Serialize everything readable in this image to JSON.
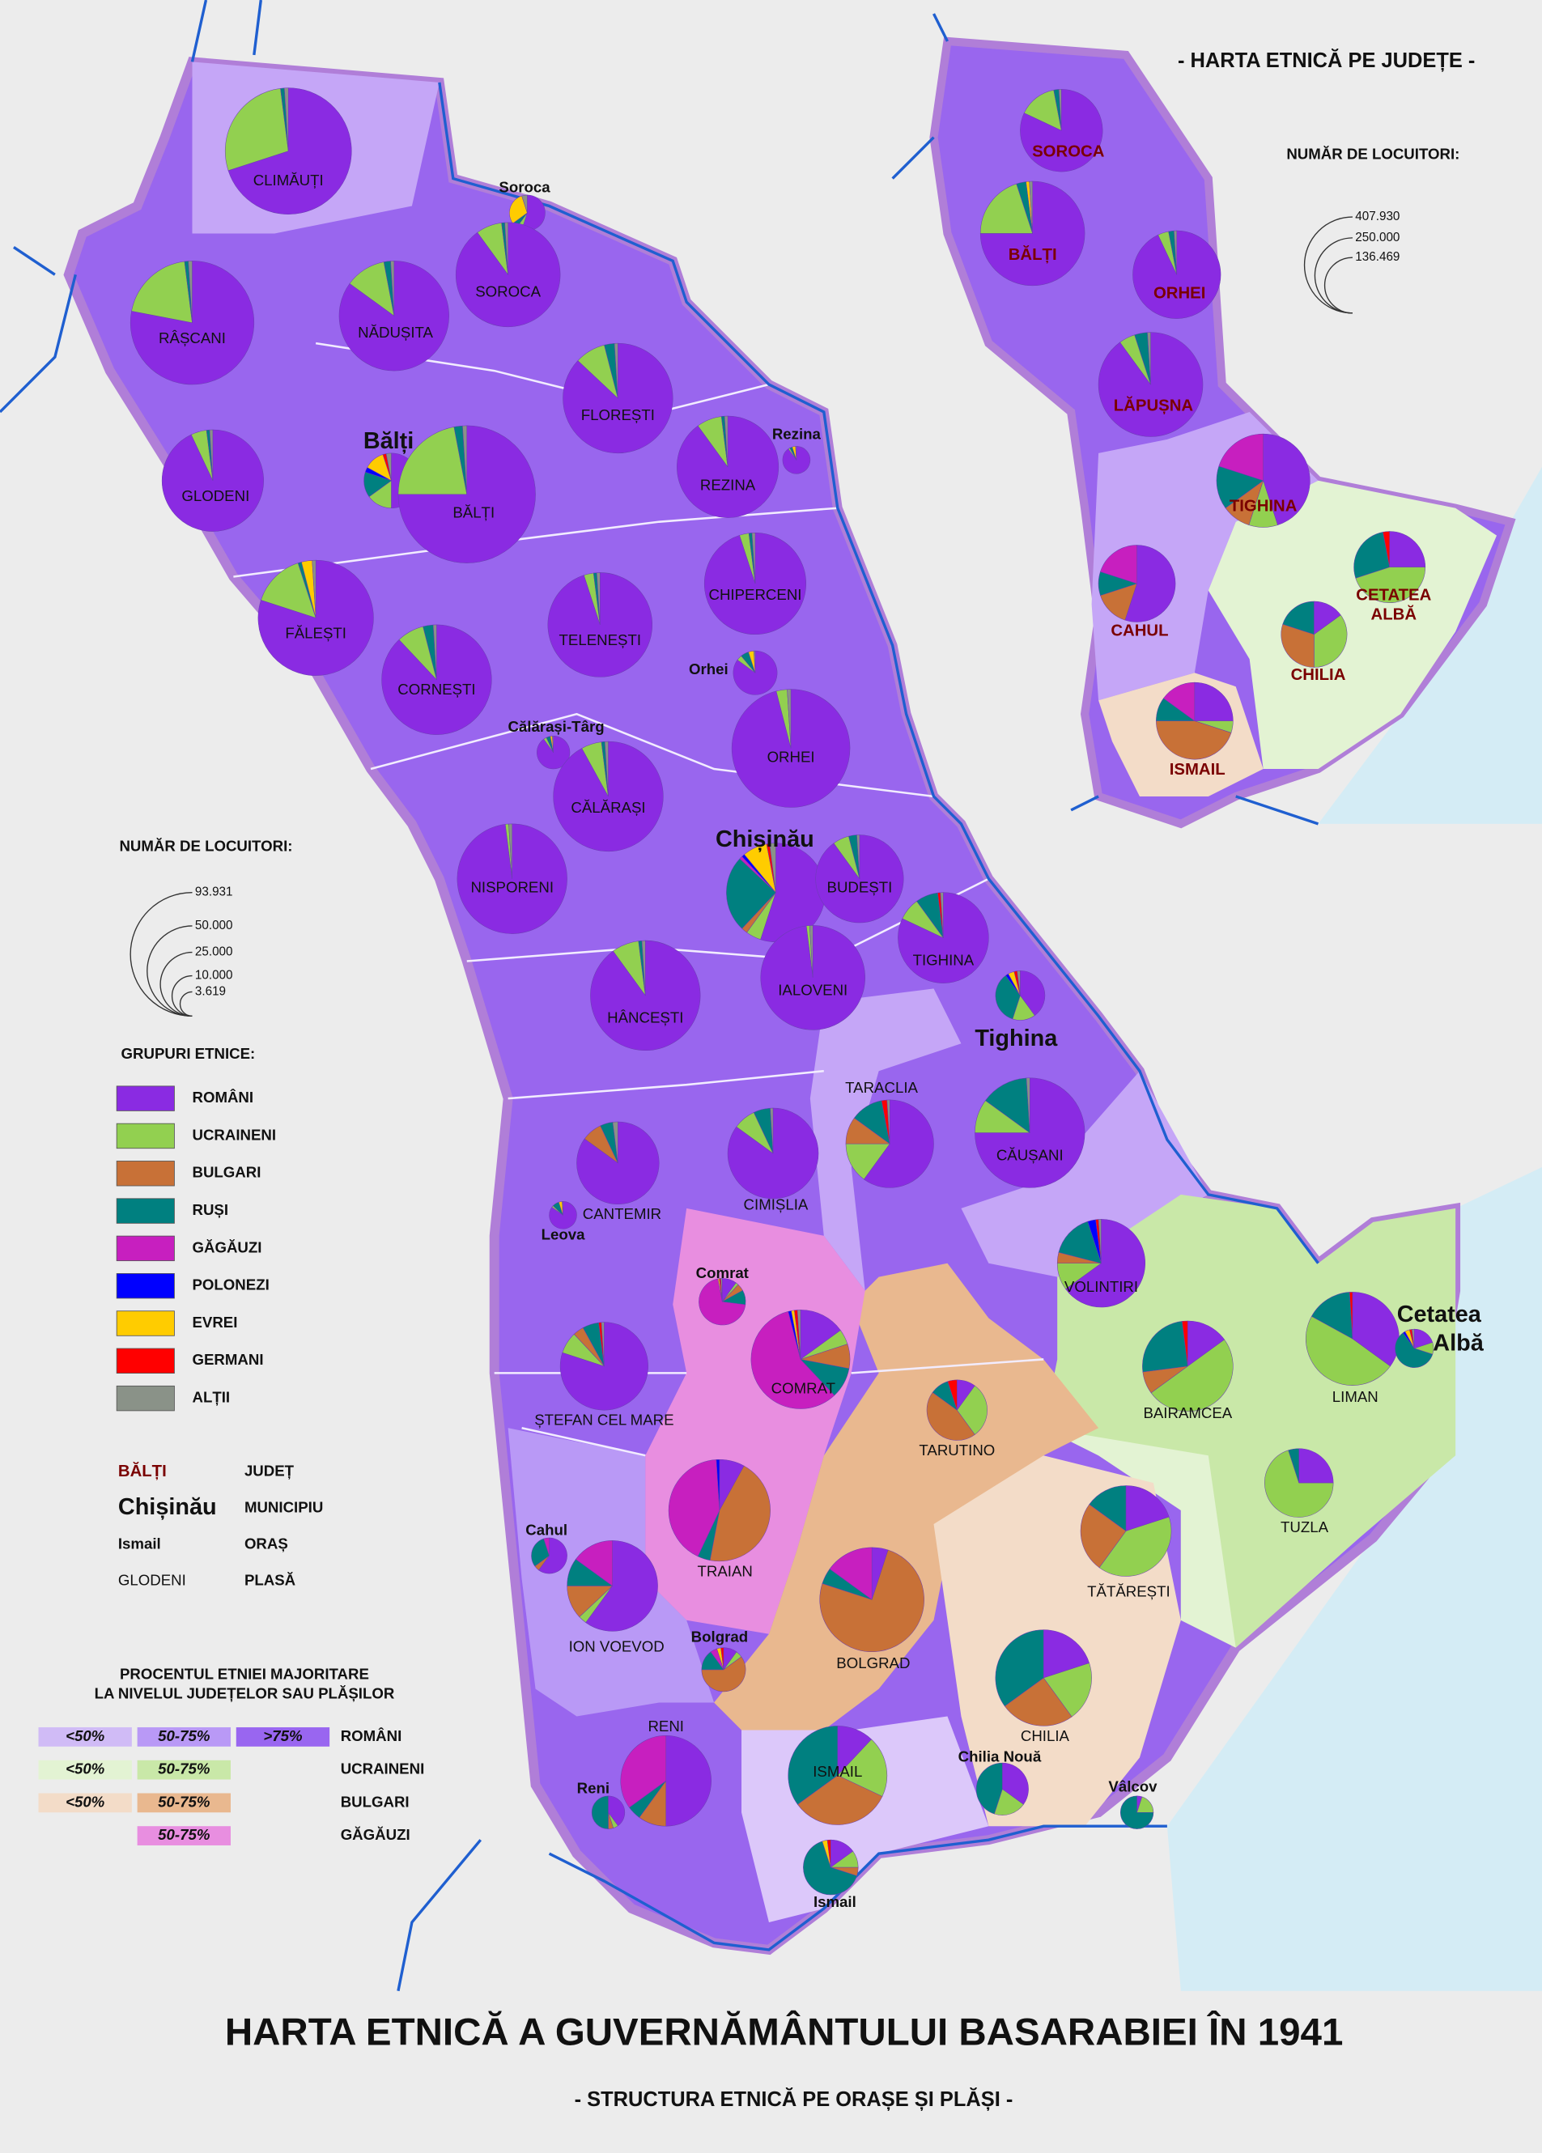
{
  "title": "HARTA ETNICĂ A GUVERNĂMÂNTULUI BASARABIEI ÎN 1941",
  "subtitle": "- STRUCTURA ETNICĂ PE ORAȘE ȘI PLĂȘI -",
  "groups_title": "GRUPURI ETNICE:",
  "groups": [
    {
      "name": "ROMÂNI",
      "color": "#8a2be2"
    },
    {
      "name": "UCRAINENI",
      "color": "#92d050"
    },
    {
      "name": "BULGARI",
      "color": "#c87137"
    },
    {
      "name": "RUȘI",
      "color": "#008080"
    },
    {
      "name": "GĂGĂUZI",
      "color": "#c71fbf"
    },
    {
      "name": "POLONEZI",
      "color": "#0000ff"
    },
    {
      "name": "EVREI",
      "color": "#ffcc00"
    },
    {
      "name": "GERMANI",
      "color": "#ff0000"
    },
    {
      "name": "ALȚII",
      "color": "#8a9288"
    }
  ],
  "population_legend": {
    "title": "NUMĂR DE LOCUITORI:",
    "ticks": [
      {
        "value": 93931,
        "label": "93.931"
      },
      {
        "value": 50000,
        "label": "50.000"
      },
      {
        "value": 25000,
        "label": "25.000"
      },
      {
        "value": 10000,
        "label": "10.000"
      },
      {
        "value": 3619,
        "label": "3.619"
      }
    ]
  },
  "label_types": [
    {
      "example": "BĂLȚI",
      "meaning": "JUDEȚ"
    },
    {
      "example": "Chișinău",
      "meaning": "MUNICIPIU"
    },
    {
      "example": "Ismail",
      "meaning": "ORAȘ"
    },
    {
      "example": "GLODENI",
      "meaning": "PLASĂ"
    }
  ],
  "majority_legend": {
    "title": [
      "PROCENTUL ETNIEI MAJORITARE",
      "LA NIVELUL JUDEȚELOR SAU PLĂȘILOR"
    ],
    "rows": [
      {
        "group": "ROMÂNI",
        "classes": [
          "<50%",
          "50-75%",
          ">75%"
        ]
      },
      {
        "group": "UCRAINENI",
        "classes": [
          "<50%",
          "50-75%"
        ]
      },
      {
        "group": "BULGARI",
        "classes": [
          "<50%",
          "50-75%"
        ]
      },
      {
        "group": "GĂGĂUZI",
        "classes": [
          "50-75%"
        ]
      }
    ]
  },
  "units": [
    {
      "name": "CLIMĂUȚI",
      "shares": [
        70,
        28,
        0,
        1,
        0,
        0,
        0,
        0,
        1
      ]
    },
    {
      "name": "Soroca",
      "shares": [
        55,
        5,
        0,
        5,
        0,
        0,
        30,
        0,
        5
      ]
    },
    {
      "name": "SOROCA",
      "shares": [
        90,
        8,
        0,
        1,
        0,
        0,
        0,
        0,
        1
      ]
    },
    {
      "name": "RÂȘCANI",
      "shares": [
        78,
        20,
        0,
        1,
        0,
        0,
        0,
        0,
        1
      ]
    },
    {
      "name": "NĂDUȘITA",
      "shares": [
        85,
        12,
        0,
        2,
        0,
        0,
        0,
        0,
        1
      ]
    },
    {
      "name": "FLOREȘTI",
      "shares": [
        87,
        9,
        0,
        3,
        0,
        0,
        0,
        0,
        1
      ]
    },
    {
      "name": "Rezina",
      "shares": [
        90,
        2,
        0,
        3,
        0,
        0,
        4,
        0,
        1
      ]
    },
    {
      "name": "REZINA",
      "shares": [
        90,
        8,
        0,
        1,
        0,
        0,
        0,
        0,
        1
      ]
    },
    {
      "name": "GLODENI",
      "shares": [
        93,
        5,
        0,
        1,
        0,
        0,
        0,
        0,
        1
      ]
    },
    {
      "name": "Bălți",
      "shares": [
        50,
        15,
        0,
        15,
        0,
        3,
        12,
        2,
        3
      ]
    },
    {
      "name": "BĂLȚI",
      "shares": [
        75,
        22,
        0,
        2,
        0,
        0,
        0,
        0,
        1
      ]
    },
    {
      "name": "CHIPERCENI",
      "shares": [
        95,
        3,
        0,
        1,
        0,
        0,
        0,
        0,
        1
      ]
    },
    {
      "name": "FĂLEȘTI",
      "shares": [
        80,
        15,
        0,
        1,
        0,
        0,
        3,
        0,
        1
      ]
    },
    {
      "name": "TELENEȘTI",
      "shares": [
        95,
        3,
        0,
        1,
        0,
        0,
        0,
        0,
        1
      ]
    },
    {
      "name": "Orhei",
      "shares": [
        85,
        4,
        0,
        6,
        0,
        0,
        4,
        0,
        1
      ]
    },
    {
      "name": "CORNEȘTI",
      "shares": [
        88,
        8,
        0,
        3,
        0,
        0,
        0,
        0,
        1
      ]
    },
    {
      "name": "ORHEI",
      "shares": [
        96,
        3,
        0,
        0,
        0,
        0,
        0,
        0,
        1
      ]
    },
    {
      "name": "Călărași-Târg",
      "shares": [
        90,
        3,
        0,
        4,
        0,
        0,
        2,
        0,
        1
      ]
    },
    {
      "name": "CĂLĂRAȘI",
      "shares": [
        92,
        6,
        0,
        1,
        0,
        0,
        0,
        0,
        1
      ]
    },
    {
      "name": "NISPORENI",
      "shares": [
        98,
        1,
        0,
        0,
        0,
        0,
        0,
        0,
        1
      ]
    },
    {
      "name": "Chișinău",
      "shares": [
        55,
        5,
        2,
        25,
        1,
        1,
        8,
        1,
        2
      ]
    },
    {
      "name": "BUDEȘTI",
      "shares": [
        90,
        6,
        0,
        3,
        0,
        0,
        0,
        0,
        1
      ]
    },
    {
      "name": "IALOVENI",
      "shares": [
        98,
        1,
        0,
        0,
        0,
        0,
        0,
        0,
        1
      ]
    },
    {
      "name": "HÂNCEȘTI",
      "shares": [
        90,
        8,
        0,
        1,
        0,
        0,
        0,
        0,
        1
      ]
    },
    {
      "name": "TIGHINA",
      "shares": [
        82,
        8,
        0,
        8,
        0,
        0,
        0,
        1,
        1
      ]
    },
    {
      "name": "Tighina",
      "shares": [
        40,
        15,
        0,
        35,
        0,
        2,
        4,
        2,
        2
      ]
    },
    {
      "name": "TARACLIA",
      "shares": [
        60,
        15,
        10,
        12,
        0,
        0,
        0,
        2,
        1
      ]
    },
    {
      "name": "CĂUȘANI",
      "shares": [
        75,
        10,
        0,
        14,
        0,
        0,
        0,
        0,
        1
      ]
    },
    {
      "name": "CANTEMIR",
      "shares": [
        85,
        0,
        8,
        5,
        0,
        0,
        0,
        0,
        2
      ]
    },
    {
      "name": "Leova",
      "shares": [
        85,
        2,
        0,
        8,
        0,
        0,
        4,
        0,
        1
      ]
    },
    {
      "name": "CIMIȘLIA",
      "shares": [
        85,
        8,
        0,
        6,
        0,
        0,
        0,
        0,
        1
      ]
    },
    {
      "name": "VOLINTIRI",
      "shares": [
        65,
        10,
        4,
        16,
        0,
        3,
        0,
        1,
        1
      ]
    },
    {
      "name": "Comrat",
      "shares": [
        10,
        2,
        5,
        10,
        70,
        0,
        1,
        1,
        1
      ]
    },
    {
      "name": "COMRAT",
      "shares": [
        15,
        5,
        8,
        10,
        58,
        1,
        1,
        1,
        1
      ]
    },
    {
      "name": "ȘTEFAN CEL MARE",
      "shares": [
        80,
        8,
        4,
        6,
        0,
        0,
        0,
        1,
        1
      ]
    },
    {
      "name": "BAIRAMCEA",
      "shares": [
        15,
        50,
        8,
        25,
        0,
        0,
        0,
        2,
        0
      ]
    },
    {
      "name": "LIMAN",
      "shares": [
        35,
        48,
        0,
        16,
        0,
        0,
        0,
        1,
        0
      ]
    },
    {
      "name": [
        "Cetatea",
        "Albă"
      ],
      "shares": [
        20,
        10,
        0,
        60,
        0,
        2,
        4,
        2,
        2
      ]
    },
    {
      "name": "TARUTINO",
      "shares": [
        10,
        30,
        45,
        10,
        0,
        0,
        0,
        5,
        0
      ]
    },
    {
      "name": "TUZLA",
      "shares": [
        25,
        70,
        0,
        5,
        0,
        0,
        0,
        0,
        0
      ]
    },
    {
      "name": "Cahul",
      "shares": [
        60,
        0,
        5,
        30,
        5,
        0,
        0,
        0,
        0
      ]
    },
    {
      "name": "TRAIAN",
      "shares": [
        8,
        0,
        45,
        4,
        42,
        1,
        0,
        0,
        0
      ]
    },
    {
      "name": "TĂTĂREȘTI",
      "shares": [
        20,
        40,
        25,
        15,
        0,
        0,
        0,
        0,
        0
      ]
    },
    {
      "name": "ION VOEVOD",
      "shares": [
        60,
        3,
        12,
        10,
        15,
        0,
        0,
        0,
        0
      ]
    },
    {
      "name": "BOLGRAD",
      "shares": [
        5,
        0,
        75,
        5,
        15,
        0,
        0,
        0,
        0
      ]
    },
    {
      "name": "Bolgrad",
      "shares": [
        10,
        5,
        60,
        15,
        5,
        0,
        3,
        2,
        0
      ]
    },
    {
      "name": "CHILIA",
      "shares": [
        20,
        20,
        25,
        35,
        0,
        0,
        0,
        0,
        0
      ]
    },
    {
      "name": "RENI",
      "shares": [
        50,
        0,
        10,
        5,
        35,
        0,
        0,
        0,
        0
      ]
    },
    {
      "name": "Reni",
      "shares": [
        40,
        5,
        5,
        50,
        0,
        0,
        0,
        0,
        0
      ]
    },
    {
      "name": "ISMAIL",
      "shares": [
        12,
        20,
        33,
        35,
        0,
        0,
        0,
        0,
        0
      ]
    },
    {
      "name": "Chilia Nouă",
      "shares": [
        35,
        20,
        0,
        45,
        0,
        0,
        0,
        0,
        0
      ]
    },
    {
      "name": "Vâlcov",
      "shares": [
        5,
        20,
        0,
        75,
        0,
        0,
        0,
        0,
        0
      ]
    },
    {
      "name": "Ismail",
      "shares": [
        15,
        10,
        5,
        65,
        0,
        0,
        3,
        2,
        0
      ]
    }
  ],
  "inset": {
    "title": "- HARTA ETNICĂ PE JUDEȚE -",
    "population_legend": {
      "title": "NUMĂR DE LOCUITORI:",
      "ticks": [
        {
          "value": 407930,
          "label": "407.930"
        },
        {
          "value": 250000,
          "label": "250.000"
        },
        {
          "value": 136469,
          "label": "136.469"
        }
      ]
    },
    "counties": [
      {
        "name": "SOROCA",
        "shares": [
          82,
          15,
          0,
          2,
          0,
          0,
          0,
          0,
          1
        ]
      },
      {
        "name": "BĂLȚI",
        "shares": [
          75,
          20,
          0,
          3,
          0,
          0,
          1,
          0,
          1
        ]
      },
      {
        "name": "ORHEI",
        "shares": [
          93,
          4,
          0,
          2,
          0,
          0,
          0,
          0,
          1
        ]
      },
      {
        "name": "LĂPUȘNA",
        "shares": [
          90,
          5,
          0,
          4,
          0,
          0,
          0,
          0,
          1
        ]
      },
      {
        "name": "TIGHINA",
        "shares": [
          45,
          10,
          10,
          15,
          20,
          0,
          0,
          0,
          0
        ]
      },
      {
        "name": [
          "CETATEA",
          "ALBĂ"
        ],
        "shares": [
          25,
          45,
          0,
          27,
          0,
          0,
          0,
          3,
          0
        ]
      },
      {
        "name": "CAHUL",
        "shares": [
          55,
          0,
          15,
          10,
          20,
          0,
          0,
          0,
          0
        ]
      },
      {
        "name": "CHILIA",
        "shares": [
          15,
          35,
          30,
          20,
          0,
          0,
          0,
          0,
          0
        ]
      },
      {
        "name": "ISMAIL",
        "shares": [
          25,
          5,
          45,
          10,
          15,
          0,
          0,
          0,
          0
        ]
      }
    ]
  }
}
